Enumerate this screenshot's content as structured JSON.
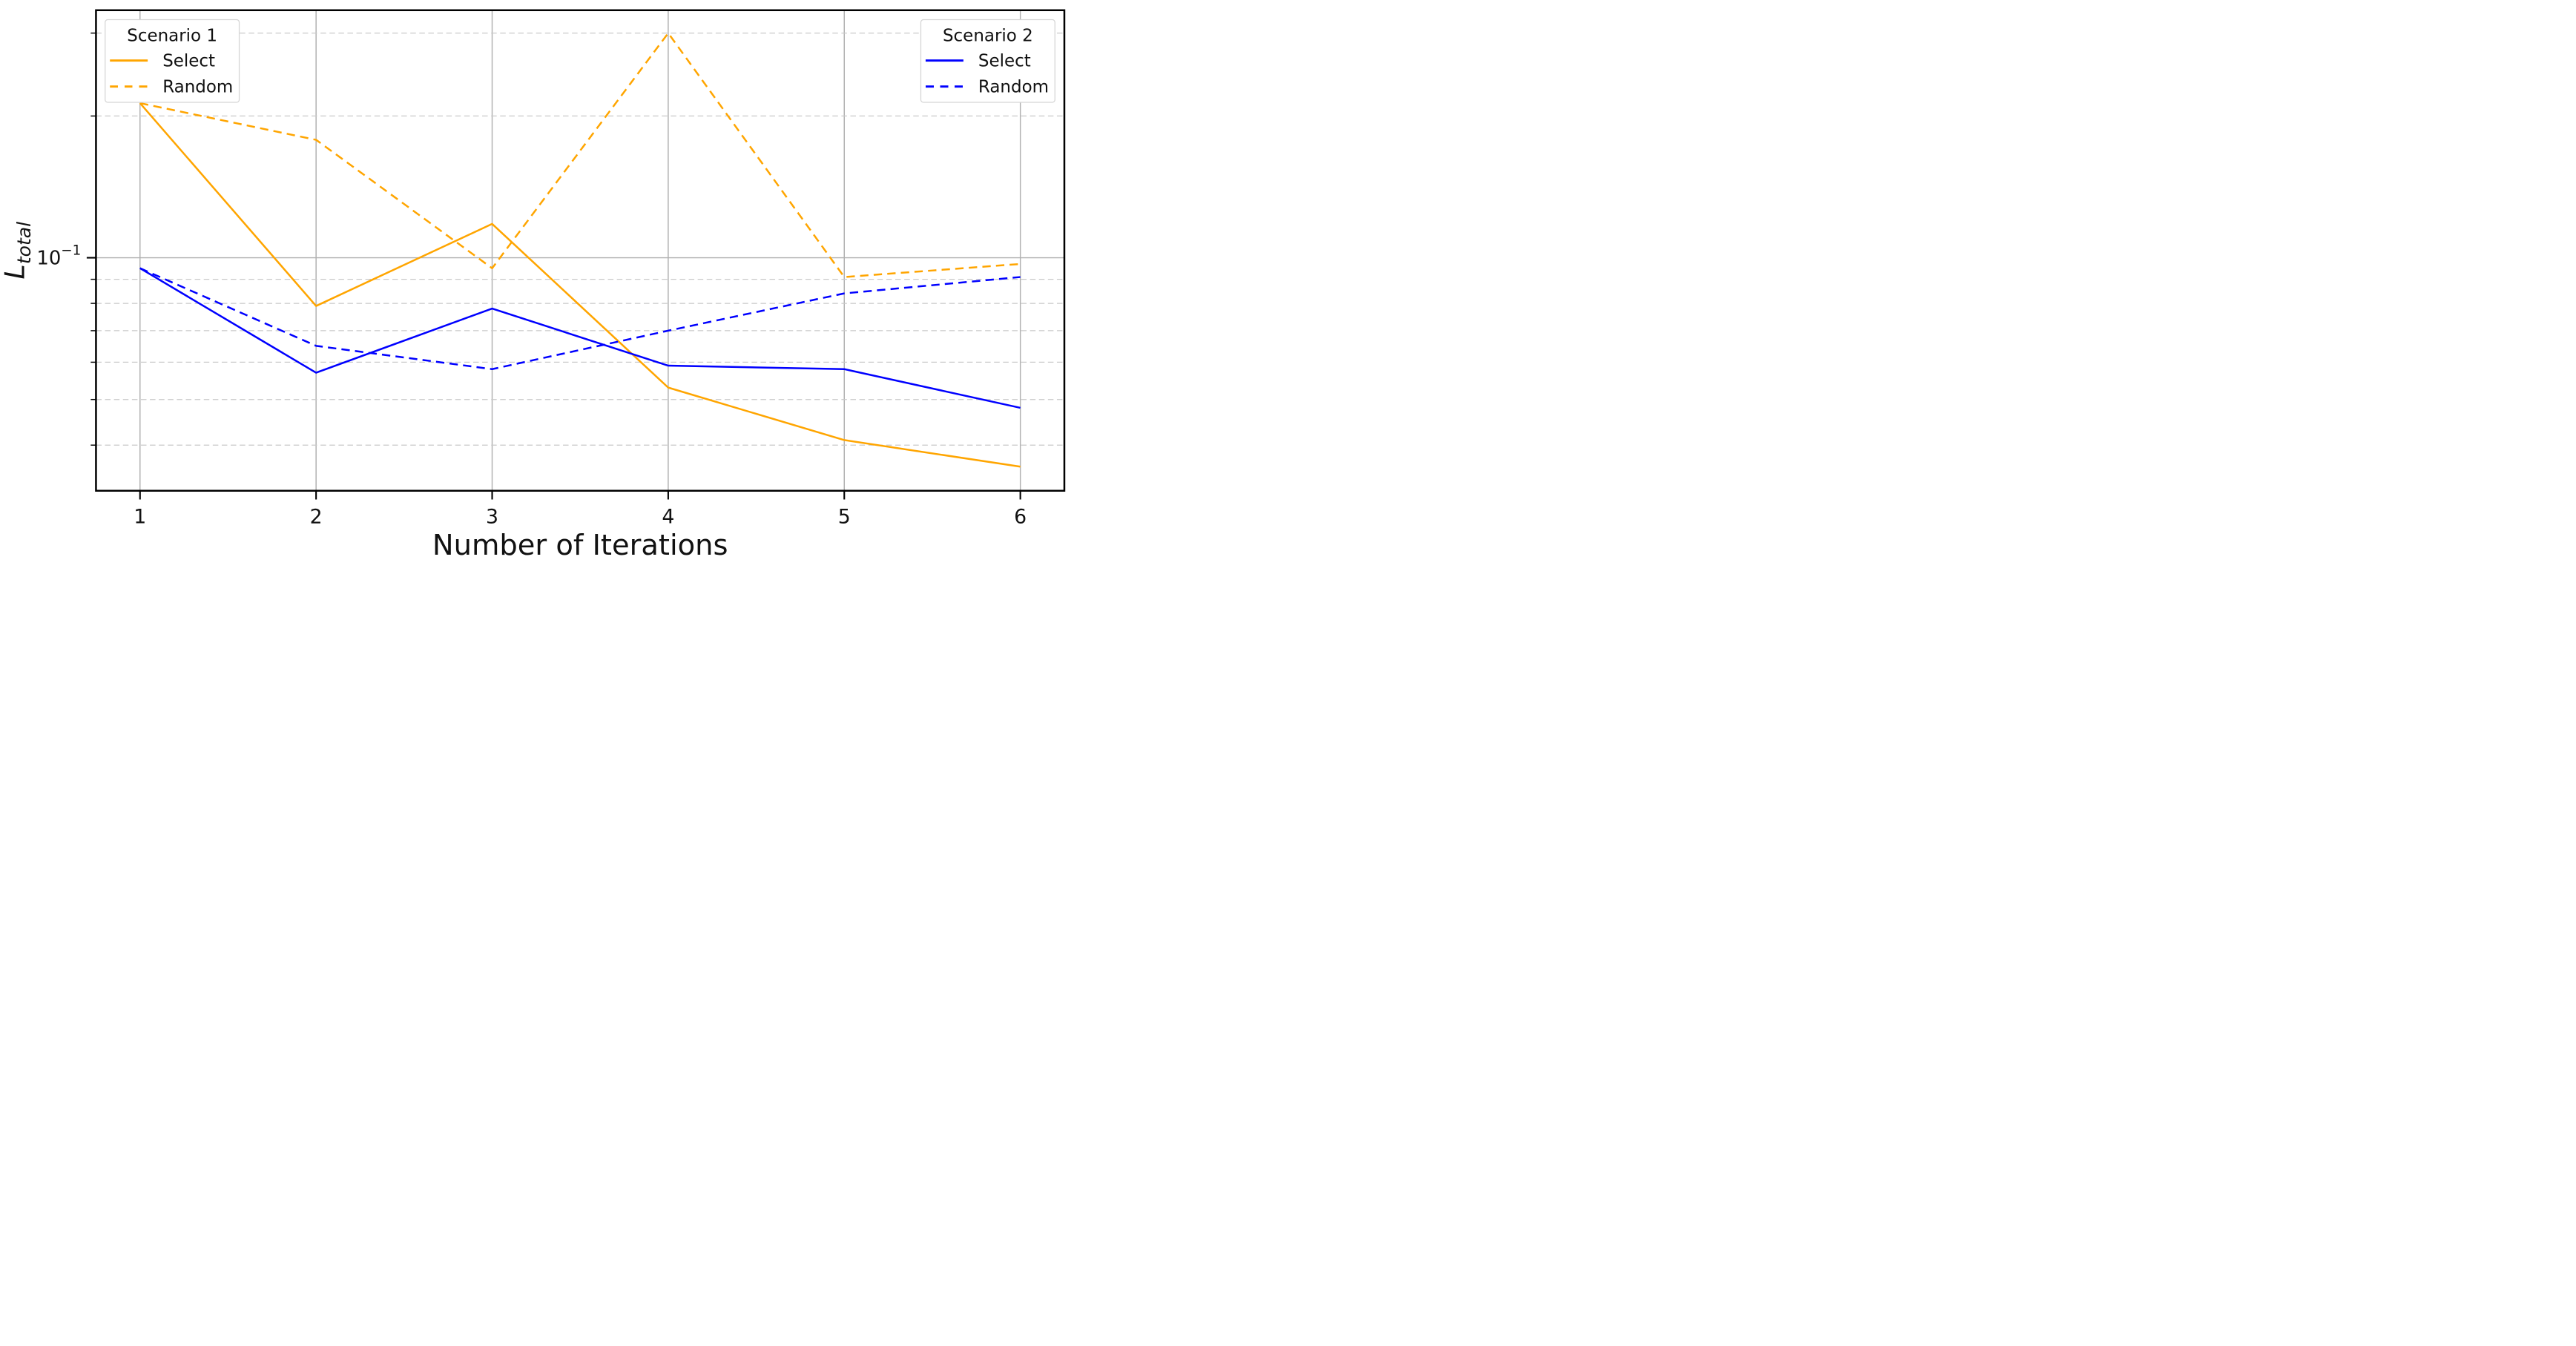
{
  "figure": {
    "background": "#ffffff"
  },
  "chart_data": {
    "type": "line",
    "title": "",
    "xlabel": "Number of Iterations",
    "ylabel": {
      "main": "L",
      "sub": "total"
    },
    "yscale": "log",
    "grid": true,
    "x": [
      1,
      2,
      3,
      4,
      5,
      6
    ],
    "x_tick_labels": [
      "1",
      "2",
      "3",
      "4",
      "5",
      "6"
    ],
    "xlim": [
      0.75,
      6.25
    ],
    "ylim": [
      0.032,
      0.3355
    ],
    "y_major_tick": {
      "value": 0.1,
      "base": "10",
      "exp": "−1"
    },
    "y_minor_ticks": [
      0.3,
      0.2,
      0.09,
      0.08,
      0.07,
      0.06,
      0.05,
      0.04
    ],
    "series": [
      {
        "scenario": "Scenario 1",
        "name": "Select",
        "color": "#FFA500",
        "style": "solid",
        "values": [
          0.213,
          0.079,
          0.118,
          0.053,
          0.041,
          0.036
        ]
      },
      {
        "scenario": "Scenario 1",
        "name": "Random",
        "color": "#FFA500",
        "style": "dashed",
        "values": [
          0.213,
          0.178,
          0.095,
          0.3,
          0.091,
          0.097
        ]
      },
      {
        "scenario": "Scenario 2",
        "name": "Select",
        "color": "#0000FF",
        "style": "solid",
        "values": [
          0.095,
          0.057,
          0.078,
          0.059,
          0.058,
          0.048
        ]
      },
      {
        "scenario": "Scenario 2",
        "name": "Random",
        "color": "#0000FF",
        "style": "dashed",
        "values": [
          0.095,
          0.065,
          0.058,
          0.07,
          0.084,
          0.091
        ]
      }
    ],
    "legends": [
      {
        "title": "Scenario 1",
        "color": "#FFA500",
        "position": "upper-left",
        "entries": [
          "Select",
          "Random"
        ]
      },
      {
        "title": "Scenario 2",
        "color": "#0000FF",
        "position": "upper-right",
        "entries": [
          "Select",
          "Random"
        ]
      }
    ],
    "colors": {
      "major_grid": "#b0b0b0",
      "minor_grid": "#c9c9c9",
      "spine": "#000000",
      "text": "#111111"
    }
  }
}
